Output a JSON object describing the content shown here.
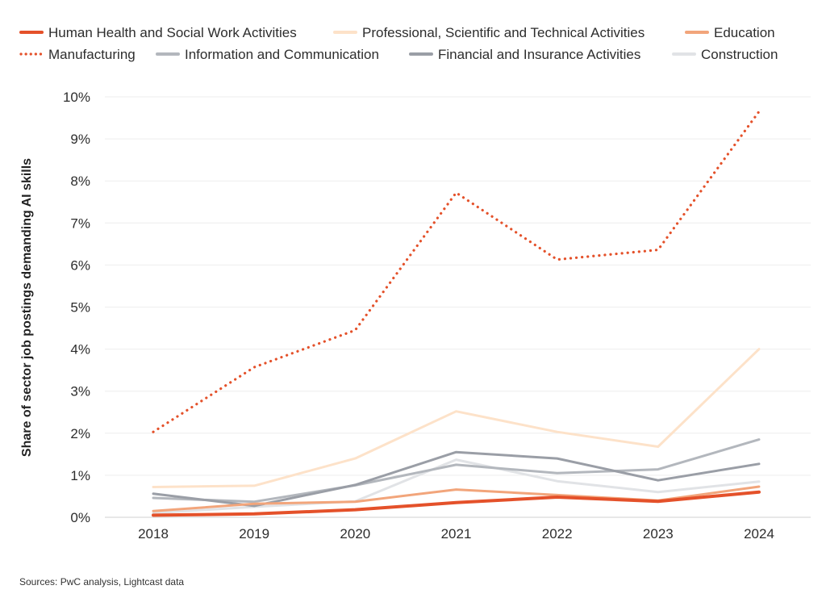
{
  "chart_data": {
    "type": "line",
    "title": "",
    "xlabel": "",
    "ylabel": "Share of sector job postings demanding AI skills",
    "x": [
      "2018",
      "2019",
      "2020",
      "2021",
      "2022",
      "2023",
      "2024"
    ],
    "ylim": [
      0,
      10
    ],
    "yticks": [
      0,
      1,
      2,
      3,
      4,
      5,
      6,
      7,
      8,
      9,
      10
    ],
    "ytick_labels": [
      "0%",
      "1%",
      "2%",
      "3%",
      "4%",
      "5%",
      "6%",
      "7%",
      "8%",
      "9%",
      "10%"
    ],
    "grid": true,
    "legend_position": "top",
    "series": [
      {
        "name": "Human Health and Social Work Activities",
        "color": "#e4512a",
        "dash": "solid",
        "width": 4,
        "values": [
          0.05,
          0.08,
          0.18,
          0.35,
          0.48,
          0.38,
          0.6
        ]
      },
      {
        "name": "Professional, Scientific and Technical Activities",
        "color": "#fde2c9",
        "dash": "solid",
        "width": 3,
        "values": [
          0.72,
          0.75,
          1.4,
          2.52,
          2.03,
          1.68,
          4.0
        ]
      },
      {
        "name": "Education",
        "color": "#f2a57b",
        "dash": "solid",
        "width": 3,
        "values": [
          0.15,
          0.32,
          0.37,
          0.66,
          0.53,
          0.4,
          0.73
        ]
      },
      {
        "name": "Manufacturing",
        "color": "#e4512a",
        "dash": "dotted",
        "width": 3,
        "values": [
          2.03,
          3.57,
          4.45,
          7.72,
          6.13,
          6.36,
          9.65
        ]
      },
      {
        "name": "Information and Communication",
        "color": "#b3b7bd",
        "dash": "solid",
        "width": 3,
        "values": [
          0.46,
          0.37,
          0.76,
          1.25,
          1.05,
          1.14,
          1.85
        ]
      },
      {
        "name": "Financial and Insurance Activities",
        "color": "#9a9ea6",
        "dash": "solid",
        "width": 3,
        "values": [
          0.56,
          0.27,
          0.77,
          1.55,
          1.4,
          0.88,
          1.27
        ]
      },
      {
        "name": "Construction",
        "color": "#e1e3e6",
        "dash": "solid",
        "width": 3,
        "values": [
          0.1,
          0.25,
          0.38,
          1.37,
          0.86,
          0.6,
          0.85
        ]
      }
    ]
  },
  "source_note": "Sources: PwC analysis, Lightcast data"
}
